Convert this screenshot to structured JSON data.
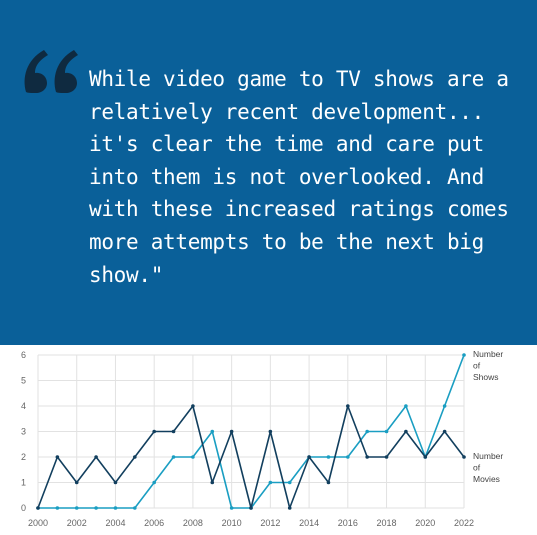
{
  "quote": {
    "mark": "“",
    "text": "While video game to TV shows are a relatively recent development... it's clear the time and care put into them is not overlooked. And with these increased ratings comes more attempts to be the next big show.\""
  },
  "colors": {
    "panel": "#0a6099",
    "quote_mark": "#0f2a40",
    "shows": "#1a9ec2",
    "movies": "#123f5e",
    "grid": "#e2e2e2"
  },
  "chart_data": {
    "type": "line",
    "x": [
      2000,
      2001,
      2002,
      2003,
      2004,
      2005,
      2006,
      2007,
      2008,
      2009,
      2010,
      2011,
      2012,
      2013,
      2014,
      2015,
      2016,
      2017,
      2018,
      2019,
      2020,
      2021,
      2022
    ],
    "series": [
      {
        "name": "Number of Shows",
        "label_lines": [
          "Number",
          "of",
          "Shows"
        ],
        "color": "#1a9ec2",
        "values": [
          0,
          0,
          0,
          0,
          0,
          0,
          1,
          2,
          2,
          3,
          0,
          0,
          1,
          1,
          2,
          2,
          2,
          3,
          3,
          4,
          2,
          4,
          6
        ]
      },
      {
        "name": "Number of Movies",
        "label_lines": [
          "Number",
          "of",
          "Movies"
        ],
        "color": "#123f5e",
        "values": [
          0,
          2,
          1,
          2,
          1,
          2,
          3,
          3,
          4,
          1,
          3,
          0,
          3,
          0,
          2,
          1,
          4,
          2,
          2,
          3,
          2,
          3,
          2
        ]
      }
    ],
    "x_ticks": [
      "2000",
      "2002",
      "2004",
      "2006",
      "2008",
      "2010",
      "2012",
      "2014",
      "2016",
      "2018",
      "2020",
      "2022"
    ],
    "y_ticks": [
      "0",
      "1",
      "2",
      "3",
      "4",
      "5",
      "6"
    ],
    "xlim": [
      2000,
      2022
    ],
    "ylim": [
      0,
      6
    ],
    "grid": true,
    "legend": "end-of-line labels"
  }
}
